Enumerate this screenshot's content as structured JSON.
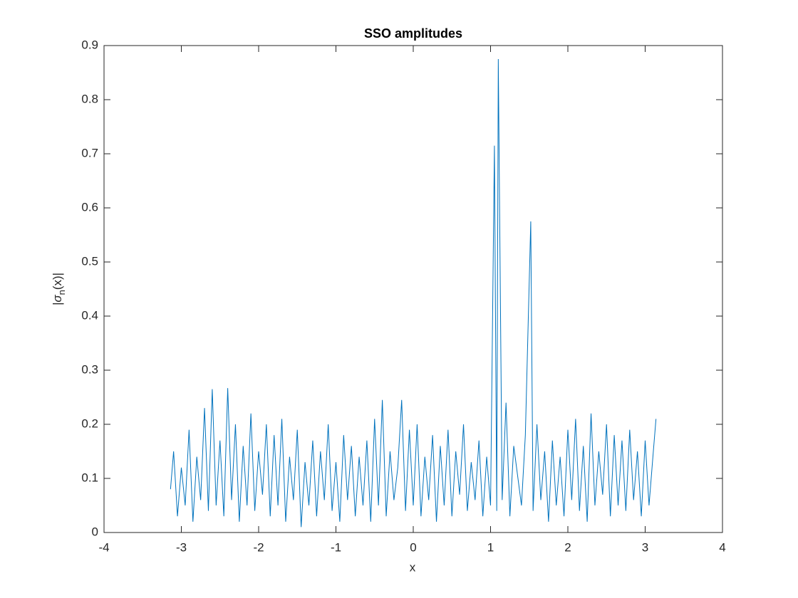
{
  "chart_data": {
    "type": "line",
    "title": "SSO amplitudes",
    "xlabel": "x",
    "ylabel": {
      "main": "|σ",
      "subscript": "n",
      "tail": "(x)|"
    },
    "xlim": [
      -4,
      4
    ],
    "xticks": [
      -4,
      -3,
      -2,
      -1,
      0,
      1,
      2,
      3,
      4
    ],
    "ylim": [
      0,
      0.9
    ],
    "yticks": [
      0,
      0.1,
      0.2,
      0.3,
      0.4,
      0.5,
      0.6,
      0.7,
      0.8,
      0.9
    ],
    "grid": false,
    "box": true,
    "series": [
      {
        "color": "#0072bd",
        "x": [
          -3.14,
          -3.1,
          -3.05,
          -3.0,
          -2.95,
          -2.9,
          -2.85,
          -2.8,
          -2.75,
          -2.7,
          -2.65,
          -2.6,
          -2.55,
          -2.5,
          -2.45,
          -2.4,
          -2.35,
          -2.3,
          -2.25,
          -2.2,
          -2.15,
          -2.1,
          -2.05,
          -2.0,
          -1.95,
          -1.9,
          -1.85,
          -1.8,
          -1.75,
          -1.7,
          -1.65,
          -1.6,
          -1.55,
          -1.5,
          -1.45,
          -1.4,
          -1.35,
          -1.3,
          -1.25,
          -1.2,
          -1.15,
          -1.1,
          -1.05,
          -1.0,
          -0.95,
          -0.9,
          -0.85,
          -0.8,
          -0.75,
          -0.7,
          -0.65,
          -0.6,
          -0.55,
          -0.5,
          -0.45,
          -0.4,
          -0.35,
          -0.3,
          -0.25,
          -0.2,
          -0.15,
          -0.1,
          -0.05,
          0.0,
          0.05,
          0.1,
          0.15,
          0.2,
          0.25,
          0.3,
          0.35,
          0.4,
          0.45,
          0.5,
          0.55,
          0.6,
          0.65,
          0.7,
          0.75,
          0.8,
          0.85,
          0.9,
          0.95,
          1.0,
          1.05,
          1.08,
          1.1,
          1.15,
          1.2,
          1.25,
          1.3,
          1.4,
          1.45,
          1.52,
          1.55,
          1.6,
          1.65,
          1.7,
          1.75,
          1.8,
          1.85,
          1.9,
          1.95,
          2.0,
          2.05,
          2.1,
          2.15,
          2.2,
          2.25,
          2.3,
          2.35,
          2.4,
          2.45,
          2.5,
          2.55,
          2.6,
          2.65,
          2.7,
          2.75,
          2.8,
          2.85,
          2.9,
          2.95,
          3.0,
          3.05,
          3.1,
          3.14
        ],
        "values": [
          0.08,
          0.15,
          0.03,
          0.12,
          0.05,
          0.19,
          0.02,
          0.14,
          0.06,
          0.23,
          0.04,
          0.265,
          0.05,
          0.17,
          0.03,
          0.267,
          0.06,
          0.2,
          0.02,
          0.16,
          0.05,
          0.22,
          0.04,
          0.15,
          0.07,
          0.2,
          0.03,
          0.18,
          0.05,
          0.21,
          0.02,
          0.14,
          0.06,
          0.19,
          0.01,
          0.13,
          0.05,
          0.17,
          0.03,
          0.15,
          0.06,
          0.2,
          0.04,
          0.13,
          0.02,
          0.18,
          0.06,
          0.16,
          0.03,
          0.14,
          0.05,
          0.17,
          0.02,
          0.21,
          0.05,
          0.245,
          0.03,
          0.15,
          0.06,
          0.12,
          0.245,
          0.04,
          0.19,
          0.05,
          0.2,
          0.03,
          0.14,
          0.06,
          0.18,
          0.02,
          0.16,
          0.05,
          0.19,
          0.03,
          0.15,
          0.07,
          0.2,
          0.04,
          0.13,
          0.06,
          0.17,
          0.03,
          0.14,
          0.05,
          0.715,
          0.04,
          0.875,
          0.06,
          0.24,
          0.03,
          0.16,
          0.05,
          0.18,
          0.575,
          0.04,
          0.2,
          0.06,
          0.15,
          0.02,
          0.17,
          0.05,
          0.14,
          0.03,
          0.19,
          0.06,
          0.21,
          0.04,
          0.16,
          0.02,
          0.22,
          0.05,
          0.15,
          0.07,
          0.2,
          0.03,
          0.18,
          0.05,
          0.17,
          0.04,
          0.19,
          0.06,
          0.15,
          0.03,
          0.17,
          0.05,
          0.14,
          0.21
        ]
      }
    ]
  }
}
